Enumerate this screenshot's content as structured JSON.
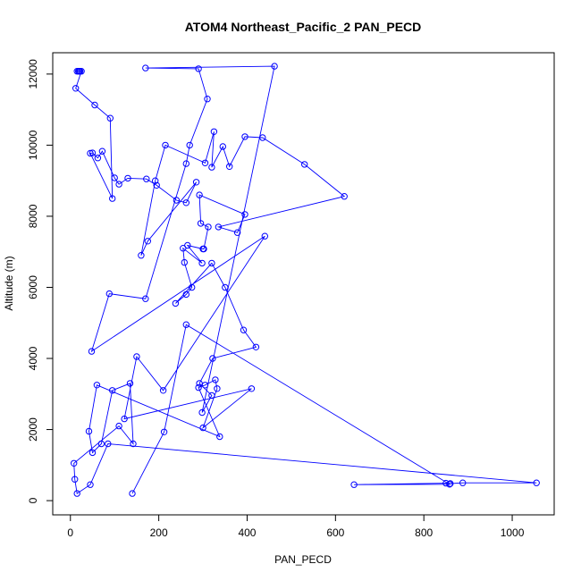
{
  "chart_data": {
    "type": "line",
    "title": "ATOM4 Northeast_Pacific_2 PAN_PECD",
    "xlabel": "PAN_PECD",
    "ylabel": "Altitude (m)",
    "xlim": [
      -40,
      1095
    ],
    "ylim": [
      -400,
      12600
    ],
    "xticks": [
      0,
      200,
      400,
      600,
      800,
      1000
    ],
    "yticks": [
      0,
      2000,
      4000,
      6000,
      8000,
      10000,
      12000
    ],
    "grid": false,
    "color": "#0000ff",
    "series": [
      {
        "x": [
          15,
          18,
          20,
          22,
          25,
          12,
          55,
          90,
          95,
          45,
          50,
          62,
          72,
          100,
          110,
          130,
          172,
          195,
          240,
          262,
          285,
          175,
          160,
          192,
          215,
          305,
          325,
          320,
          345,
          360,
          395,
          435,
          530,
          620,
          335,
          378,
          395,
          292,
          295,
          312,
          302,
          300,
          265,
          298,
          255,
          258,
          275,
          262,
          238,
          320,
          350,
          392,
          420,
          322,
          292,
          320,
          298,
          462,
          170,
          290,
          310,
          270,
          262,
          170,
          88,
          48,
          440,
          210,
          150,
          122,
          410,
          300,
          332,
          328,
          305,
          290,
          338,
          60,
          42,
          50,
          70,
          95,
          135,
          142,
          110,
          8,
          10,
          15,
          45,
          85,
          1055,
          888,
          860,
          850,
          642,
          858,
          262,
          212,
          140
        ],
        "y": [
          12080,
          12080,
          12080,
          12080,
          12080,
          11600,
          11130,
          10760,
          8500,
          9770,
          9780,
          9640,
          9830,
          9080,
          8900,
          9070,
          9050,
          8870,
          8450,
          8380,
          8960,
          7300,
          6900,
          9000,
          10000,
          9500,
          10380,
          9380,
          9960,
          9400,
          10240,
          10210,
          9460,
          8560,
          7700,
          7540,
          8050,
          8600,
          7800,
          7700,
          7080,
          7080,
          7180,
          6680,
          7100,
          6700,
          6000,
          5800,
          5550,
          6680,
          6000,
          4800,
          4320,
          4000,
          3300,
          2960,
          2480,
          12220,
          12170,
          12150,
          11300,
          10000,
          9480,
          5680,
          5820,
          4200,
          7440,
          3100,
          4050,
          2300,
          3150,
          2050,
          3150,
          3400,
          3250,
          3180,
          1800,
          3250,
          1950,
          1350,
          1600,
          3100,
          3300,
          1600,
          2100,
          1050,
          600,
          200,
          450,
          1600,
          500,
          500,
          480,
          490,
          450,
          460,
          4950,
          1930,
          200
        ]
      }
    ]
  }
}
